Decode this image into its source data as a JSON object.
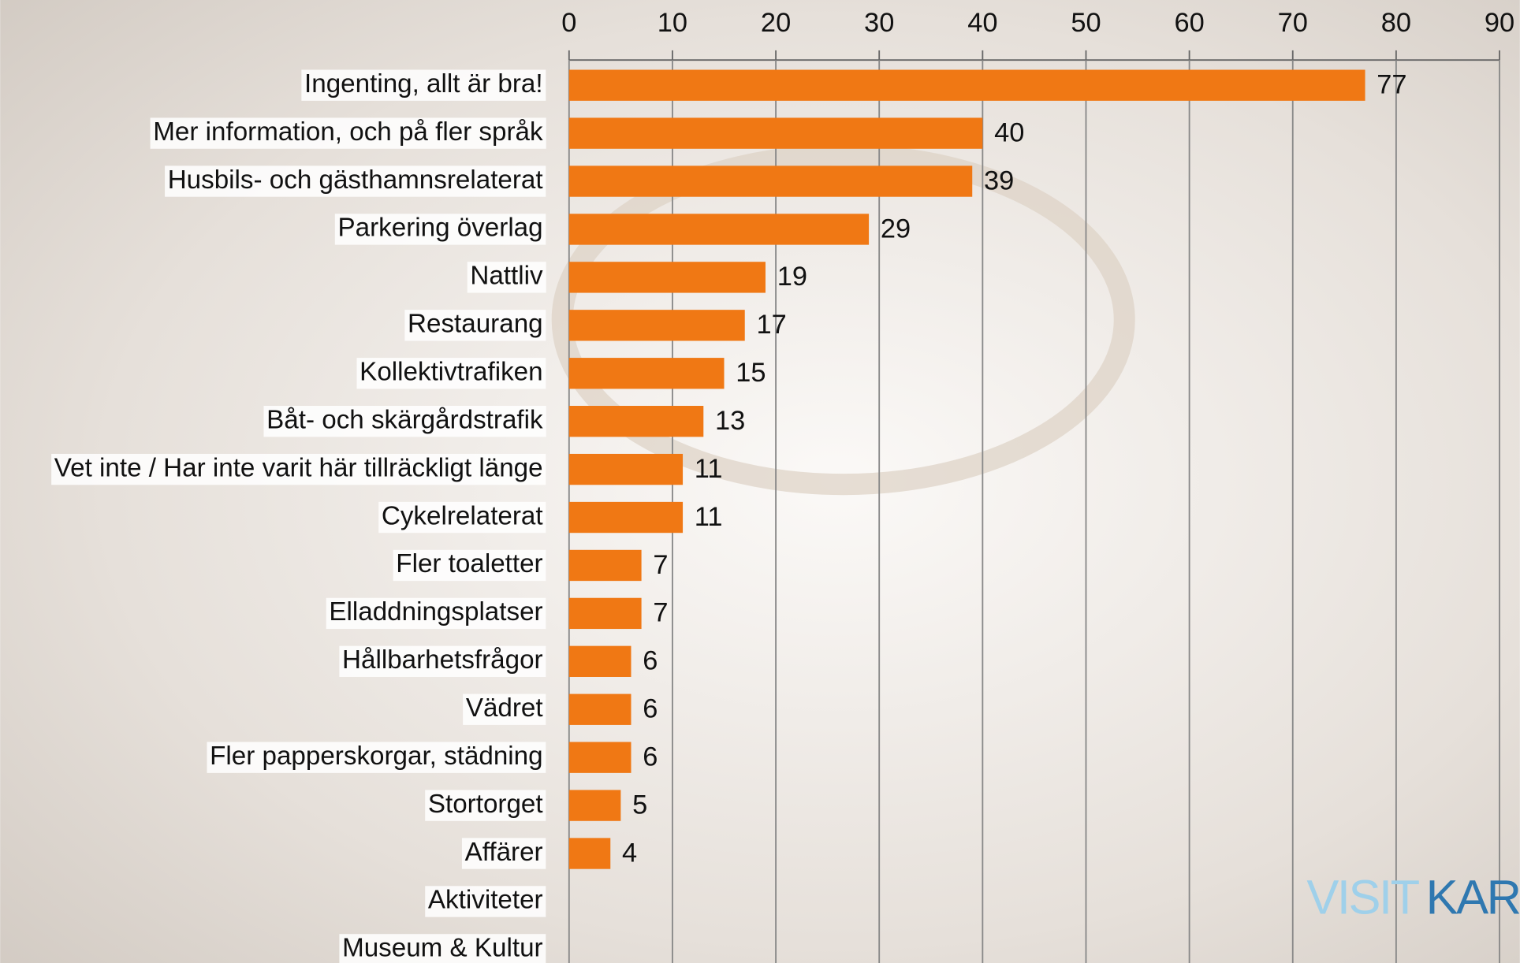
{
  "chart_data": {
    "type": "hbar",
    "categories": [
      "Ingenting, allt är bra!",
      "Mer information, och på fler språk",
      "Husbils- och gästhamnsrelaterat",
      "Parkering överlag",
      "Nattliv",
      "Restaurang",
      "Kollektivtrafiken",
      "Båt- och skärgårdstrafik",
      "Vet inte / Har inte varit här tillräckligt länge",
      "Cykelrelaterat",
      "Fler toaletter",
      "Elladdningsplatser",
      "Hållbarhetsfrågor",
      "Vädret",
      "Fler papperskorgar, städning",
      "Stortorget",
      "Affärer",
      "Aktiviteter",
      "Museum & Kultur"
    ],
    "values": [
      77,
      40,
      39,
      29,
      19,
      17,
      15,
      13,
      11,
      11,
      7,
      7,
      6,
      6,
      6,
      5,
      4,
      null,
      null
    ],
    "color": "#f07814",
    "xlim": [
      0,
      90
    ],
    "xticks": [
      0,
      10,
      20,
      30,
      40,
      50,
      60,
      70,
      80,
      90
    ],
    "grid": true,
    "brand": [
      "VISIT",
      "KAR"
    ]
  }
}
